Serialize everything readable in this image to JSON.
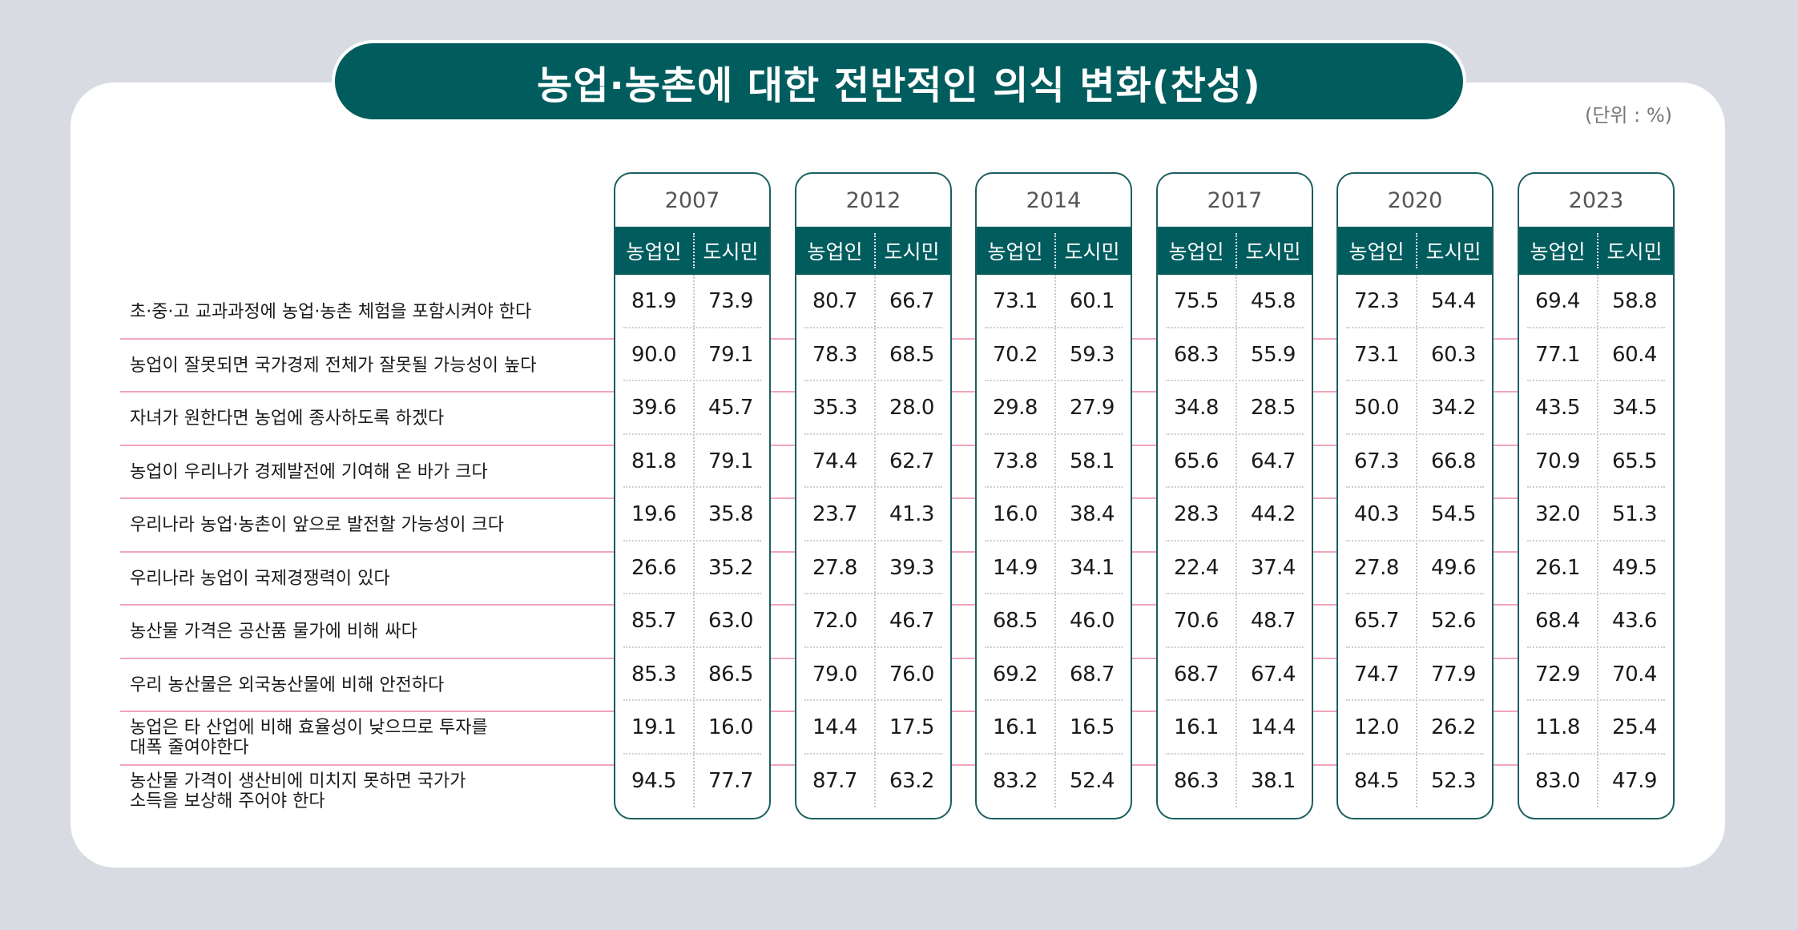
{
  "chart_data": {
    "type": "table",
    "title": "농업·농촌에 대한 전반적인 의식 변화(찬성)",
    "unit": "(단위 : %)",
    "years": [
      "2007",
      "2012",
      "2014",
      "2017",
      "2020",
      "2023"
    ],
    "subcolumns": [
      "농업인",
      "도시민"
    ],
    "rows": [
      {
        "label": [
          "초·중·고 교과과정에 농업·농촌 체험을 포함시켜야 한다"
        ],
        "values": [
          [
            81.9,
            73.9
          ],
          [
            80.7,
            66.7
          ],
          [
            73.1,
            60.1
          ],
          [
            75.5,
            45.8
          ],
          [
            72.3,
            54.4
          ],
          [
            69.4,
            58.8
          ]
        ]
      },
      {
        "label": [
          "농업이 잘못되면 국가경제 전체가 잘못될 가능성이 높다"
        ],
        "values": [
          [
            90.0,
            79.1
          ],
          [
            78.3,
            68.5
          ],
          [
            70.2,
            59.3
          ],
          [
            68.3,
            55.9
          ],
          [
            73.1,
            60.3
          ],
          [
            77.1,
            60.4
          ]
        ]
      },
      {
        "label": [
          "자녀가 원한다면 농업에 종사하도록 하겠다"
        ],
        "values": [
          [
            39.6,
            45.7
          ],
          [
            35.3,
            28.0
          ],
          [
            29.8,
            27.9
          ],
          [
            34.8,
            28.5
          ],
          [
            50.0,
            34.2
          ],
          [
            43.5,
            34.5
          ]
        ]
      },
      {
        "label": [
          "농업이 우리나가 경제발전에 기여해 온 바가 크다"
        ],
        "values": [
          [
            81.8,
            79.1
          ],
          [
            74.4,
            62.7
          ],
          [
            73.8,
            58.1
          ],
          [
            65.6,
            64.7
          ],
          [
            67.3,
            66.8
          ],
          [
            70.9,
            65.5
          ]
        ]
      },
      {
        "label": [
          "우리나라 농업·농촌이 앞으로 발전할 가능성이 크다"
        ],
        "values": [
          [
            19.6,
            35.8
          ],
          [
            23.7,
            41.3
          ],
          [
            16.0,
            38.4
          ],
          [
            28.3,
            44.2
          ],
          [
            40.3,
            54.5
          ],
          [
            32.0,
            51.3
          ]
        ]
      },
      {
        "label": [
          "우리나라 농업이 국제경쟁력이 있다"
        ],
        "values": [
          [
            26.6,
            35.2
          ],
          [
            27.8,
            39.3
          ],
          [
            14.9,
            34.1
          ],
          [
            22.4,
            37.4
          ],
          [
            27.8,
            49.6
          ],
          [
            26.1,
            49.5
          ]
        ]
      },
      {
        "label": [
          "농산물 가격은 공산품 물가에 비해 싸다"
        ],
        "values": [
          [
            85.7,
            63.0
          ],
          [
            72.0,
            46.7
          ],
          [
            68.5,
            46.0
          ],
          [
            70.6,
            48.7
          ],
          [
            65.7,
            52.6
          ],
          [
            68.4,
            43.6
          ]
        ]
      },
      {
        "label": [
          "우리 농산물은 외국농산물에 비해 안전하다"
        ],
        "values": [
          [
            85.3,
            86.5
          ],
          [
            79.0,
            76.0
          ],
          [
            69.2,
            68.7
          ],
          [
            68.7,
            67.4
          ],
          [
            74.7,
            77.9
          ],
          [
            72.9,
            70.4
          ]
        ]
      },
      {
        "label": [
          "농업은 타 산업에 비해 효율성이 낮으므로 투자를",
          "대폭 줄여야한다"
        ],
        "values": [
          [
            19.1,
            16.0
          ],
          [
            14.4,
            17.5
          ],
          [
            16.1,
            16.5
          ],
          [
            16.1,
            14.4
          ],
          [
            12.0,
            26.2
          ],
          [
            11.8,
            25.4
          ]
        ]
      },
      {
        "label": [
          "농산물 가격이 생산비에 미치지 못하면 국가가",
          "소득을 보상해 주어야 한다"
        ],
        "values": [
          [
            94.5,
            77.7
          ],
          [
            87.7,
            63.2
          ],
          [
            83.2,
            52.4
          ],
          [
            86.3,
            38.1
          ],
          [
            84.5,
            52.3
          ],
          [
            83.0,
            47.9
          ]
        ]
      }
    ]
  },
  "colors": {
    "accent": "#015c5e",
    "row_line": "#f2a5bd",
    "background": "#d8dbe2"
  }
}
